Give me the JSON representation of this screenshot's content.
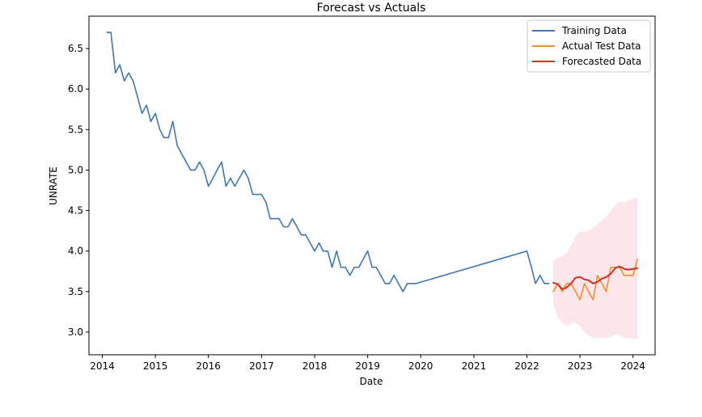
{
  "chart_data": {
    "type": "line",
    "title": "Forecast vs Actuals",
    "xlabel": "Date",
    "ylabel": "UNRATE",
    "x_ticks": [
      "2014",
      "2015",
      "2016",
      "2017",
      "2018",
      "2019",
      "2020",
      "2021",
      "2022",
      "2023",
      "2024"
    ],
    "y_ticks": [
      "3.0",
      "3.5",
      "4.0",
      "4.5",
      "5.0",
      "5.5",
      "6.0",
      "6.5"
    ],
    "xlim": [
      "2013-10-01",
      "2024-06-01"
    ],
    "ylim": [
      2.72,
      6.9
    ],
    "legend_position": "top-right",
    "series": [
      {
        "name": "Training Data",
        "color": "#3f76b5",
        "points": [
          [
            "2014-02-01",
            6.7
          ],
          [
            "2014-03-01",
            6.7
          ],
          [
            "2014-04-01",
            6.2
          ],
          [
            "2014-05-01",
            6.3
          ],
          [
            "2014-06-01",
            6.1
          ],
          [
            "2014-07-01",
            6.2
          ],
          [
            "2014-08-01",
            6.1
          ],
          [
            "2014-09-01",
            5.9
          ],
          [
            "2014-10-01",
            5.7
          ],
          [
            "2014-11-01",
            5.8
          ],
          [
            "2014-12-01",
            5.6
          ],
          [
            "2015-01-01",
            5.7
          ],
          [
            "2015-02-01",
            5.5
          ],
          [
            "2015-03-01",
            5.4
          ],
          [
            "2015-04-01",
            5.4
          ],
          [
            "2015-05-01",
            5.6
          ],
          [
            "2015-06-01",
            5.3
          ],
          [
            "2015-07-01",
            5.2
          ],
          [
            "2015-08-01",
            5.1
          ],
          [
            "2015-09-01",
            5.0
          ],
          [
            "2015-10-01",
            5.0
          ],
          [
            "2015-11-01",
            5.1
          ],
          [
            "2015-12-01",
            5.0
          ],
          [
            "2016-01-01",
            4.8
          ],
          [
            "2016-02-01",
            4.9
          ],
          [
            "2016-03-01",
            5.0
          ],
          [
            "2016-04-01",
            5.1
          ],
          [
            "2016-05-01",
            4.8
          ],
          [
            "2016-06-01",
            4.9
          ],
          [
            "2016-07-01",
            4.8
          ],
          [
            "2016-08-01",
            4.9
          ],
          [
            "2016-09-01",
            5.0
          ],
          [
            "2016-10-01",
            4.9
          ],
          [
            "2016-11-01",
            4.7
          ],
          [
            "2016-12-01",
            4.7
          ],
          [
            "2017-01-01",
            4.7
          ],
          [
            "2017-02-01",
            4.6
          ],
          [
            "2017-03-01",
            4.4
          ],
          [
            "2017-04-01",
            4.4
          ],
          [
            "2017-05-01",
            4.4
          ],
          [
            "2017-06-01",
            4.3
          ],
          [
            "2017-07-01",
            4.3
          ],
          [
            "2017-08-01",
            4.4
          ],
          [
            "2017-09-01",
            4.3
          ],
          [
            "2017-10-01",
            4.2
          ],
          [
            "2017-11-01",
            4.2
          ],
          [
            "2017-12-01",
            4.1
          ],
          [
            "2018-01-01",
            4.0
          ],
          [
            "2018-02-01",
            4.1
          ],
          [
            "2018-03-01",
            4.0
          ],
          [
            "2018-04-01",
            4.0
          ],
          [
            "2018-05-01",
            3.8
          ],
          [
            "2018-06-01",
            4.0
          ],
          [
            "2018-07-01",
            3.8
          ],
          [
            "2018-08-01",
            3.8
          ],
          [
            "2018-09-01",
            3.7
          ],
          [
            "2018-10-01",
            3.8
          ],
          [
            "2018-11-01",
            3.8
          ],
          [
            "2018-12-01",
            3.9
          ],
          [
            "2019-01-01",
            4.0
          ],
          [
            "2019-02-01",
            3.8
          ],
          [
            "2019-03-01",
            3.8
          ],
          [
            "2019-04-01",
            3.7
          ],
          [
            "2019-05-01",
            3.6
          ],
          [
            "2019-06-01",
            3.6
          ],
          [
            "2019-07-01",
            3.7
          ],
          [
            "2019-08-01",
            3.6
          ],
          [
            "2019-09-01",
            3.5
          ],
          [
            "2019-10-01",
            3.6
          ],
          [
            "2019-11-01",
            3.6
          ],
          [
            "2019-12-01",
            3.6
          ],
          [
            "2022-01-01",
            4.0
          ],
          [
            "2022-02-01",
            3.8
          ],
          [
            "2022-03-01",
            3.6
          ],
          [
            "2022-04-01",
            3.7
          ],
          [
            "2022-05-01",
            3.6
          ],
          [
            "2022-06-01",
            3.6
          ]
        ]
      },
      {
        "name": "Actual Test Data",
        "color": "#f28e2b",
        "points": [
          [
            "2022-07-01",
            3.5
          ],
          [
            "2022-08-01",
            3.6
          ],
          [
            "2022-09-01",
            3.5
          ],
          [
            "2022-10-01",
            3.6
          ],
          [
            "2022-11-01",
            3.6
          ],
          [
            "2022-12-01",
            3.5
          ],
          [
            "2023-01-01",
            3.4
          ],
          [
            "2023-02-01",
            3.6
          ],
          [
            "2023-03-01",
            3.5
          ],
          [
            "2023-04-01",
            3.4
          ],
          [
            "2023-05-01",
            3.7
          ],
          [
            "2023-06-01",
            3.6
          ],
          [
            "2023-07-01",
            3.5
          ],
          [
            "2023-08-01",
            3.8
          ],
          [
            "2023-09-01",
            3.8
          ],
          [
            "2023-10-01",
            3.8
          ],
          [
            "2023-11-01",
            3.7
          ],
          [
            "2023-12-01",
            3.7
          ],
          [
            "2024-01-01",
            3.7
          ],
          [
            "2024-02-01",
            3.9
          ]
        ]
      },
      {
        "name": "Forecasted Data",
        "color": "#d62e1f",
        "points": [
          [
            "2022-07-01",
            3.61
          ],
          [
            "2022-08-01",
            3.59
          ],
          [
            "2022-09-01",
            3.53
          ],
          [
            "2022-10-01",
            3.55
          ],
          [
            "2022-11-01",
            3.6
          ],
          [
            "2022-12-01",
            3.67
          ],
          [
            "2023-01-01",
            3.68
          ],
          [
            "2023-02-01",
            3.65
          ],
          [
            "2023-03-01",
            3.64
          ],
          [
            "2023-04-01",
            3.6
          ],
          [
            "2023-05-01",
            3.62
          ],
          [
            "2023-06-01",
            3.66
          ],
          [
            "2023-07-01",
            3.68
          ],
          [
            "2023-08-01",
            3.72
          ],
          [
            "2023-09-01",
            3.79
          ],
          [
            "2023-10-01",
            3.81
          ],
          [
            "2023-11-01",
            3.78
          ],
          [
            "2023-12-01",
            3.77
          ],
          [
            "2024-01-01",
            3.78
          ],
          [
            "2024-02-01",
            3.79
          ]
        ]
      }
    ],
    "confidence_band": {
      "color": "#f4b6c2",
      "x": [
        "2022-07-01",
        "2022-08-01",
        "2022-09-01",
        "2022-10-01",
        "2022-11-01",
        "2022-12-01",
        "2023-01-01",
        "2023-02-01",
        "2023-03-01",
        "2023-04-01",
        "2023-05-01",
        "2023-06-01",
        "2023-07-01",
        "2023-08-01",
        "2023-09-01",
        "2023-10-01",
        "2023-11-01",
        "2023-12-01",
        "2024-01-01",
        "2024-02-01"
      ],
      "lower": [
        3.35,
        3.18,
        3.11,
        3.08,
        3.1,
        3.12,
        3.08,
        3.0,
        2.96,
        2.93,
        2.92,
        2.93,
        2.93,
        2.94,
        2.97,
        2.96,
        2.93,
        2.92,
        2.92,
        2.92
      ],
      "upper": [
        3.88,
        3.92,
        3.93,
        3.98,
        4.07,
        4.18,
        4.24,
        4.24,
        4.25,
        4.29,
        4.33,
        4.38,
        4.43,
        4.5,
        4.57,
        4.61,
        4.6,
        4.62,
        4.65,
        4.66
      ]
    }
  }
}
